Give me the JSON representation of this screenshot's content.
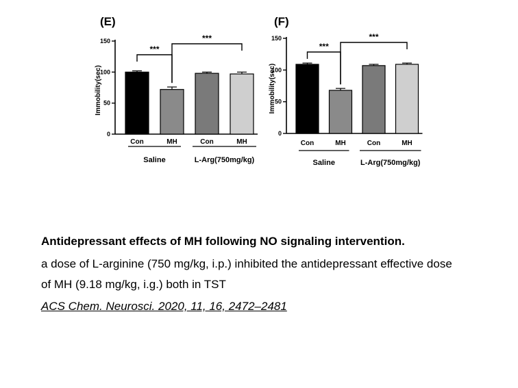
{
  "chart_data": [
    {
      "type": "bar",
      "panel_label": "(E)",
      "ylabel": "Immobility(sec)",
      "ylim": [
        0,
        150
      ],
      "yticks": [
        0,
        50,
        100,
        150
      ],
      "categories": [
        "Con",
        "MH",
        "Con",
        "MH"
      ],
      "values": [
        100,
        72,
        98,
        97
      ],
      "errors": [
        2,
        4,
        2,
        3
      ],
      "colors": [
        "#000000",
        "#8a8a8a",
        "#7a7a7a",
        "#cfcfcf"
      ],
      "groups": [
        {
          "label": "Saline",
          "span": [
            0,
            1
          ]
        },
        {
          "label": "L-Arg(750mg/kg)",
          "span": [
            2,
            3
          ]
        }
      ],
      "significance": [
        {
          "from": 0,
          "to": 1,
          "label": "***"
        },
        {
          "from": 1,
          "to": 3,
          "label": "***"
        }
      ]
    },
    {
      "type": "bar",
      "panel_label": "(F)",
      "ylabel": "Immobility(sec)",
      "ylim": [
        0,
        150
      ],
      "yticks": [
        0,
        50,
        100,
        150
      ],
      "categories": [
        "Con",
        "MH",
        "Con",
        "MH"
      ],
      "values": [
        109,
        68,
        107,
        109
      ],
      "errors": [
        2,
        3,
        2,
        2
      ],
      "colors": [
        "#000000",
        "#8a8a8a",
        "#7a7a7a",
        "#cfcfcf"
      ],
      "groups": [
        {
          "label": "Saline",
          "span": [
            0,
            1
          ]
        },
        {
          "label": "L-Arg(750mg/kg)",
          "span": [
            2,
            3
          ]
        }
      ],
      "significance": [
        {
          "from": 0,
          "to": 1,
          "label": "***"
        },
        {
          "from": 1,
          "to": 3,
          "label": "***"
        }
      ]
    }
  ],
  "caption": {
    "title": "Antidepressant effects of MH following NO signaling intervention.",
    "line1": "a dose of L-arginine (750 mg/kg, i.p.) inhibited the antidepressant effective dose",
    "line2": "of MH (9.18 mg/kg, i.g.) both in TST",
    "citation": "ACS Chem. Neurosci. 2020, 11, 16, 2472–2481"
  }
}
